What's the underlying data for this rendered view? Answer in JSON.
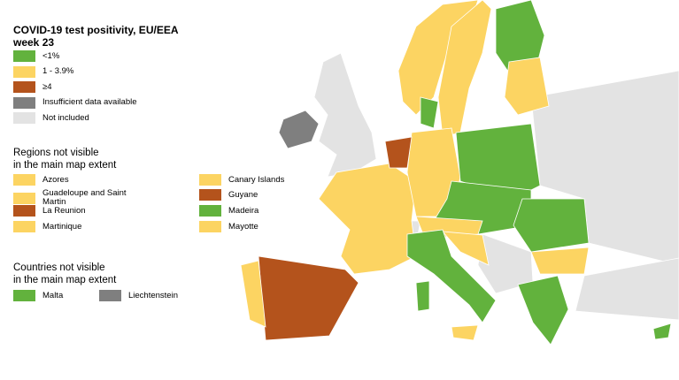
{
  "title_lines": [
    "COVID-19 test positivity, EU/EEA",
    "week 23"
  ],
  "legend": [
    {
      "label": "<1%",
      "color": "#62b23d"
    },
    {
      "label": "1 - 3.9%",
      "color": "#fcd462"
    },
    {
      "label": "≥4",
      "color": "#b4531c"
    },
    {
      "label": "Insufficient data available",
      "color": "#7f7f7f"
    },
    {
      "label": "Not included",
      "color": "#e3e3e3"
    }
  ],
  "regions_heading": [
    "Regions not visible",
    "in the main map extent"
  ],
  "regions": [
    {
      "label": "Azores",
      "color": "#fcd462"
    },
    {
      "label": "Canary Islands",
      "color": "#fcd462"
    },
    {
      "label": "Guadeloupe and Saint Martin",
      "color": "#fcd462"
    },
    {
      "label": "Guyane",
      "color": "#b4531c"
    },
    {
      "label": "La Reunion",
      "color": "#b4531c"
    },
    {
      "label": "Madeira",
      "color": "#62b23d"
    },
    {
      "label": "Martinique",
      "color": "#fcd462"
    },
    {
      "label": "Mayotte",
      "color": "#fcd462"
    }
  ],
  "countries_heading": [
    "Countries not visible",
    "in the main map extent"
  ],
  "countries": [
    {
      "label": "Malta",
      "color": "#62b23d"
    },
    {
      "label": "Liechtenstein",
      "color": "#7f7f7f"
    }
  ]
}
